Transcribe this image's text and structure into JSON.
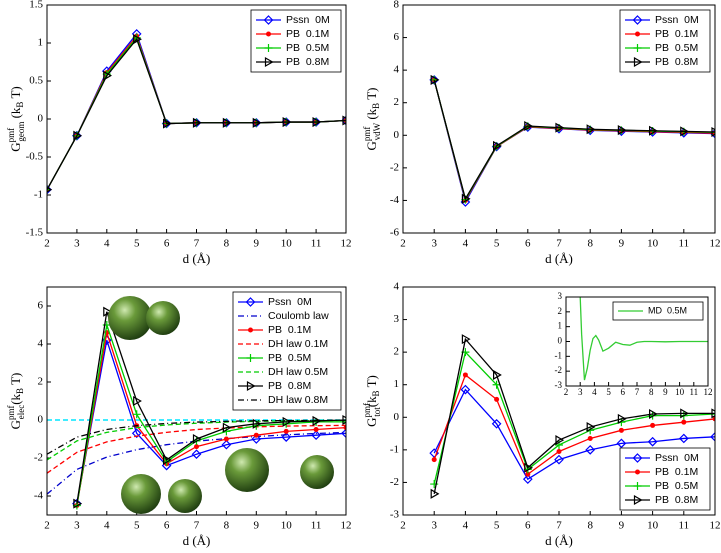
{
  "chart_data": [
    {
      "type": "line",
      "x_label": "d (Å)",
      "y_label": {
        "base": "G",
        "sup": "pmf",
        "sub": "geom",
        "unit": " (k",
        "unit_sub": "B",
        "unit_end": " T)"
      },
      "xlim": [
        2,
        12
      ],
      "xticks": [
        2,
        3,
        4,
        5,
        6,
        7,
        8,
        9,
        10,
        11,
        12
      ],
      "ylim": [
        -1.5,
        1.5
      ],
      "yticks": [
        -1.5,
        -1,
        -0.5,
        0,
        0.5,
        1,
        1.5
      ],
      "legend": "upper right",
      "x": [
        2,
        3,
        4,
        5,
        6,
        7,
        8,
        9,
        10,
        11,
        12
      ],
      "series": [
        {
          "name": "Pssn  0M",
          "color": "#0000ff",
          "marker": "diamond",
          "values": [
            -0.93,
            -0.22,
            0.63,
            1.12,
            -0.06,
            -0.05,
            -0.05,
            -0.05,
            -0.04,
            -0.04,
            -0.02
          ]
        },
        {
          "name": "PB  0.1M",
          "color": "#ff0000",
          "marker": "dot",
          "values": [
            -0.93,
            -0.22,
            0.61,
            1.09,
            -0.06,
            -0.05,
            -0.05,
            -0.05,
            -0.04,
            -0.04,
            -0.02
          ]
        },
        {
          "name": "PB  0.5M",
          "color": "#00cc00",
          "marker": "plus",
          "values": [
            -0.93,
            -0.22,
            0.59,
            1.07,
            -0.06,
            -0.05,
            -0.05,
            -0.05,
            -0.04,
            -0.04,
            -0.02
          ]
        },
        {
          "name": "PB  0.8M",
          "color": "#000000",
          "marker": "triangle",
          "values": [
            -0.93,
            -0.22,
            0.57,
            1.05,
            -0.06,
            -0.05,
            -0.05,
            -0.05,
            -0.04,
            -0.04,
            -0.02
          ]
        }
      ]
    },
    {
      "type": "line",
      "x_label": "d (Å)",
      "y_label": {
        "base": "G",
        "sup": "pmf",
        "sub": "vdW",
        "unit": " (k",
        "unit_sub": "B",
        "unit_end": " T)"
      },
      "xlim": [
        2,
        12
      ],
      "xticks": [
        2,
        3,
        4,
        5,
        6,
        7,
        8,
        9,
        10,
        11,
        12
      ],
      "ylim": [
        -6,
        8
      ],
      "yticks": [
        -6,
        -4,
        -2,
        0,
        2,
        4,
        6,
        8
      ],
      "legend": "upper right",
      "x": [
        3,
        4,
        5,
        6,
        7,
        8,
        9,
        10,
        11,
        12
      ],
      "series": [
        {
          "name": "Pssn  0M",
          "color": "#0000ff",
          "marker": "diamond",
          "values": [
            3.4,
            -4.1,
            -0.7,
            0.5,
            0.4,
            0.3,
            0.25,
            0.2,
            0.15,
            0.1
          ]
        },
        {
          "name": "PB  0.1M",
          "color": "#ff0000",
          "marker": "dot",
          "values": [
            3.4,
            -4.0,
            -0.7,
            0.52,
            0.42,
            0.32,
            0.27,
            0.22,
            0.18,
            0.13
          ]
        },
        {
          "name": "PB  0.5M",
          "color": "#00cc00",
          "marker": "plus",
          "values": [
            3.4,
            -3.95,
            -0.68,
            0.55,
            0.45,
            0.35,
            0.3,
            0.26,
            0.22,
            0.18
          ]
        },
        {
          "name": "PB  0.8M",
          "color": "#000000",
          "marker": "triangle",
          "values": [
            3.4,
            -3.9,
            -0.65,
            0.57,
            0.47,
            0.37,
            0.32,
            0.28,
            0.24,
            0.2
          ]
        }
      ]
    },
    {
      "type": "line",
      "x_label": "d (Å)",
      "y_label": {
        "base": "G",
        "sup": "pmf",
        "sub": "elec",
        "unit": "(k",
        "unit_sub": "B",
        "unit_end": " T)"
      },
      "xlim": [
        2,
        12
      ],
      "xticks": [
        2,
        3,
        4,
        5,
        6,
        7,
        8,
        9,
        10,
        11,
        12
      ],
      "ylim": [
        -5,
        7
      ],
      "yticks": [
        -4,
        -2,
        0,
        2,
        4,
        6
      ],
      "legend": "upper right",
      "x": [
        3,
        4,
        5,
        6,
        7,
        8,
        9,
        10,
        11,
        12
      ],
      "series": [
        {
          "name": "Pssn  0M",
          "color": "#0000ff",
          "marker": "diamond",
          "values": [
            -4.4,
            4.2,
            -0.7,
            -2.4,
            -1.8,
            -1.3,
            -1.0,
            -0.9,
            -0.8,
            -0.7
          ]
        },
        {
          "name": "Coulomb law",
          "color": "#0000cc",
          "dash": "dashdot",
          "x": [
            2,
            3,
            4,
            5,
            6,
            7,
            8,
            9,
            10,
            11,
            12
          ],
          "values": [
            -3.9,
            -2.6,
            -1.95,
            -1.56,
            -1.3,
            -1.11,
            -0.98,
            -0.87,
            -0.78,
            -0.71,
            -0.65
          ]
        },
        {
          "name": "PB  0.1M",
          "color": "#ff0000",
          "marker": "dot",
          "values": [
            -4.5,
            4.6,
            -0.3,
            -2.3,
            -1.4,
            -1.0,
            -0.8,
            -0.6,
            -0.5,
            -0.4
          ]
        },
        {
          "name": "DH law 0.1M",
          "color": "#ff0000",
          "dash": "dashed",
          "x": [
            2,
            3,
            4,
            5,
            6,
            7,
            8,
            9,
            10,
            11,
            12
          ],
          "values": [
            -2.8,
            -1.7,
            -1.15,
            -0.85,
            -0.65,
            -0.5,
            -0.42,
            -0.36,
            -0.32,
            -0.3,
            -0.28
          ]
        },
        {
          "name": "PB  0.5M",
          "color": "#00cc00",
          "marker": "plus",
          "values": [
            -4.5,
            5.0,
            0.3,
            -2.2,
            -1.1,
            -0.6,
            -0.3,
            -0.2,
            -0.1,
            -0.1
          ]
        },
        {
          "name": "DH law 0.5M",
          "color": "#00cc00",
          "dash": "dashed",
          "x": [
            2,
            3,
            4,
            5,
            6,
            7,
            8,
            9,
            10,
            11,
            12
          ],
          "values": [
            -2.1,
            -1.1,
            -0.65,
            -0.4,
            -0.26,
            -0.17,
            -0.11,
            -0.07,
            -0.05,
            -0.03,
            -0.02
          ]
        },
        {
          "name": "PB  0.8M",
          "color": "#000000",
          "marker": "triangle",
          "values": [
            -4.4,
            5.7,
            1.0,
            -2.1,
            -1.0,
            -0.4,
            -0.2,
            -0.1,
            -0.05,
            0.0
          ]
        },
        {
          "name": "DH law 0.8M",
          "color": "#000000",
          "dash": "dashdot",
          "x": [
            2,
            3,
            4,
            5,
            6,
            7,
            8,
            9,
            10,
            11,
            12
          ],
          "values": [
            -1.8,
            -0.9,
            -0.5,
            -0.3,
            -0.18,
            -0.11,
            -0.07,
            -0.04,
            -0.03,
            -0.02,
            -0.01
          ]
        }
      ]
    },
    {
      "type": "line",
      "x_label": "d (Å)",
      "y_label": {
        "base": "G",
        "sup": "pmf",
        "sub": "tot",
        "unit": "(k",
        "unit_sub": "B",
        "unit_end": " T)"
      },
      "xlim": [
        2,
        12
      ],
      "xticks": [
        2,
        3,
        4,
        5,
        6,
        7,
        8,
        9,
        10,
        11,
        12
      ],
      "ylim": [
        -3,
        4
      ],
      "yticks": [
        -3,
        -2,
        -1,
        0,
        1,
        2,
        3,
        4
      ],
      "legend": "lower right",
      "x": [
        3,
        4,
        5,
        6,
        7,
        8,
        9,
        10,
        11,
        12
      ],
      "series": [
        {
          "name": "Pssn  0M",
          "color": "#0000ff",
          "marker": "diamond",
          "values": [
            -1.1,
            0.85,
            -0.2,
            -1.9,
            -1.3,
            -1.0,
            -0.8,
            -0.75,
            -0.65,
            -0.6
          ]
        },
        {
          "name": "PB  0.1M",
          "color": "#ff0000",
          "marker": "dot",
          "values": [
            -1.3,
            1.3,
            0.55,
            -1.75,
            -1.05,
            -0.65,
            -0.4,
            -0.25,
            -0.15,
            -0.05
          ]
        },
        {
          "name": "PB  0.5M",
          "color": "#00cc00",
          "marker": "plus",
          "values": [
            -2.05,
            2.0,
            1.0,
            -1.6,
            -0.85,
            -0.4,
            -0.15,
            0.05,
            0.05,
            0.1
          ]
        },
        {
          "name": "PB  0.8M",
          "color": "#000000",
          "marker": "triangle",
          "values": [
            -2.35,
            2.4,
            1.3,
            -1.55,
            -0.7,
            -0.3,
            -0.05,
            0.1,
            0.12,
            0.12
          ]
        }
      ]
    },
    {
      "type": "line",
      "xlim": [
        2,
        12
      ],
      "xticks": [
        2,
        3,
        4,
        5,
        6,
        7,
        8,
        9,
        10,
        11,
        12
      ],
      "ylim": [
        -3,
        3
      ],
      "yticks": [
        -3,
        -2,
        -1,
        0,
        1,
        2,
        3
      ],
      "legend": "upper right",
      "x": [
        3.0,
        3.1,
        3.3,
        3.5,
        3.7,
        3.9,
        4.1,
        4.3,
        4.6,
        5.0,
        5.5,
        6.0,
        6.5,
        7.0,
        7.5,
        8,
        9,
        10,
        11,
        12
      ],
      "series": [
        {
          "name": "MD  0.5M",
          "color": "#33cc33",
          "values": [
            3.0,
            0.5,
            -2.6,
            -1.8,
            -0.6,
            0.2,
            0.4,
            0.1,
            -0.65,
            -0.45,
            -0.05,
            -0.2,
            -0.25,
            -0.05,
            0.0,
            0.0,
            -0.02,
            0.0,
            0.0,
            0.0
          ]
        }
      ]
    }
  ]
}
